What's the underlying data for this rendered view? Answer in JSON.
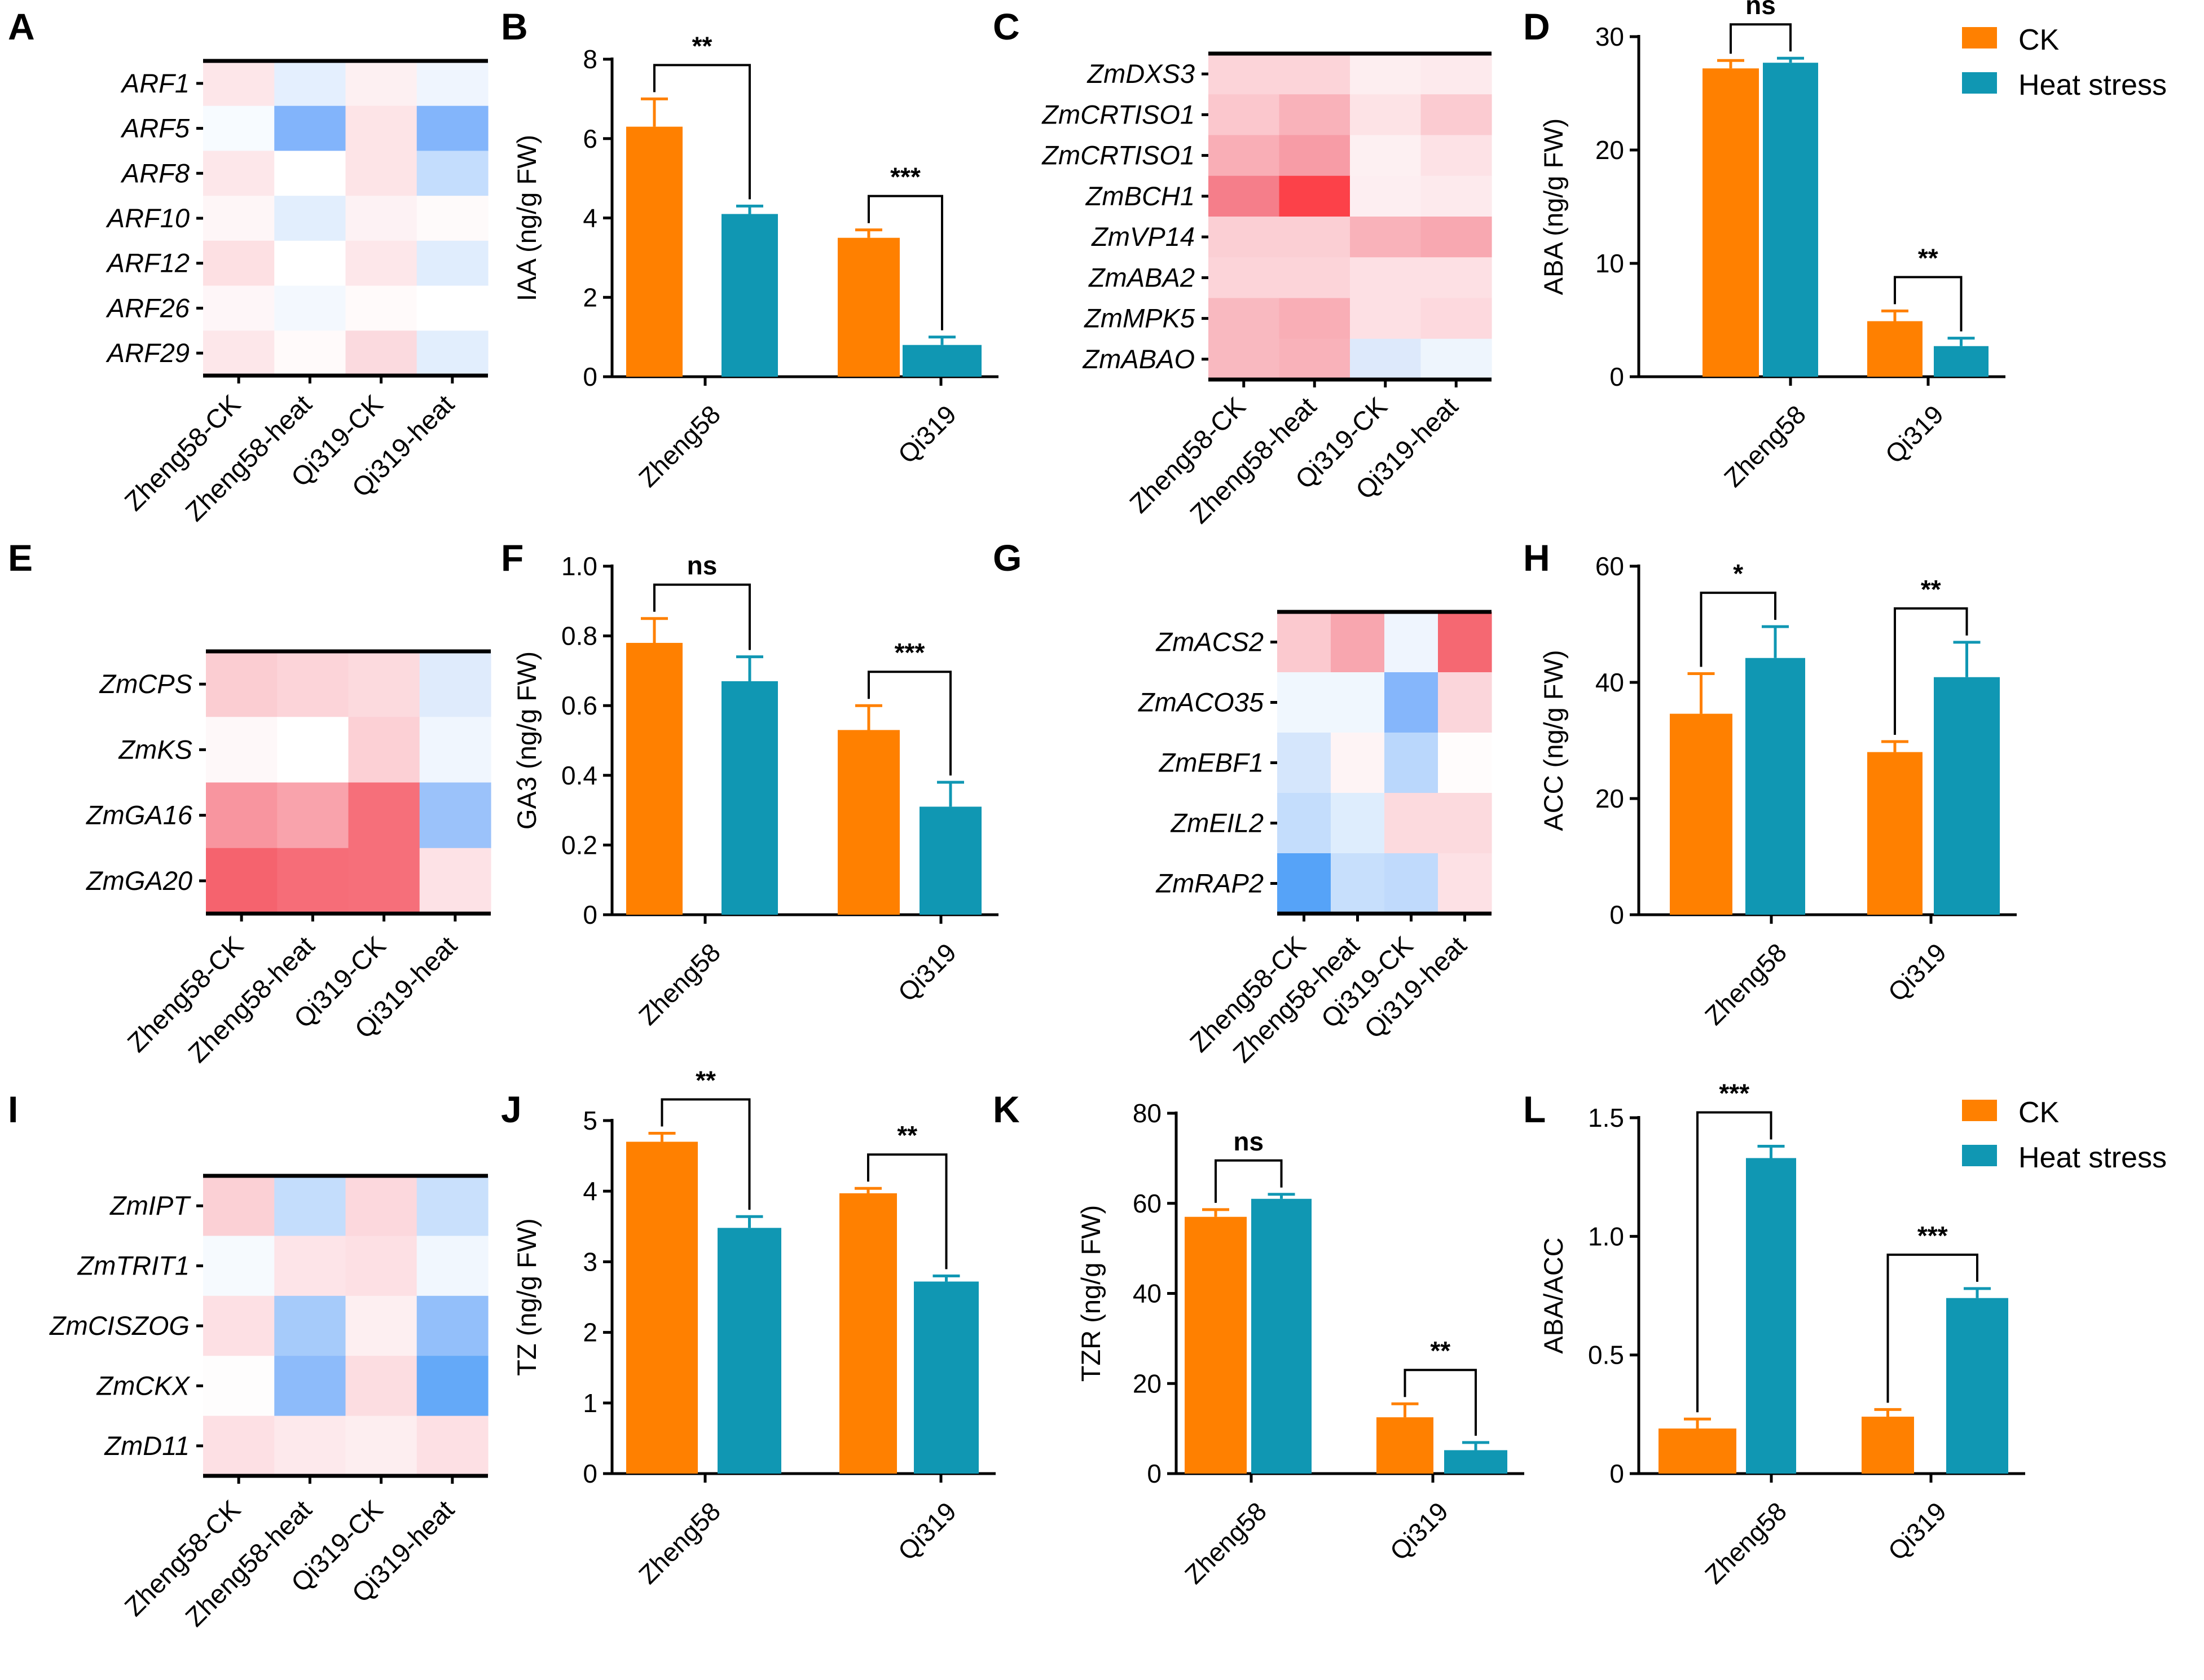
{
  "colors": {
    "ck": "#FF8000",
    "heat": "#1097B3"
  },
  "legend": {
    "ck_label": "CK",
    "heat_label": "Heat stress"
  },
  "chart_data": [
    {
      "panel": "A",
      "type": "heatmap",
      "rows": [
        "ARF1",
        "ARF5",
        "ARF8",
        "ARF10",
        "ARF12",
        "ARF26",
        "ARF29"
      ],
      "columns": [
        "Zheng58-CK",
        "Zheng58-heat",
        "Qi319-CK",
        "Qi319-heat"
      ],
      "colors": [
        [
          "#fde6e9",
          "#e4effe",
          "#fdf0f2",
          "#eff5fe"
        ],
        [
          "#f7fbff",
          "#82b4fb",
          "#fde4e7",
          "#83b5fb"
        ],
        [
          "#fde7ea",
          "#ffffff",
          "#fde4e7",
          "#c4ddfd"
        ],
        [
          "#fef6f7",
          "#e2eefd",
          "#fdf2f4",
          "#fefafa"
        ],
        [
          "#fde0e3",
          "#ffffff",
          "#fde7ea",
          "#e0edfd"
        ],
        [
          "#fef6f8",
          "#f3f8fe",
          "#fffafa",
          "#ffffff"
        ],
        [
          "#fde7ea",
          "#fffafa",
          "#fbdadf",
          "#e2eefd"
        ]
      ]
    },
    {
      "panel": "B",
      "type": "bar",
      "categories": [
        "Zheng58",
        "Qi319"
      ],
      "series": [
        {
          "name": "CK",
          "values": [
            6.3,
            3.5
          ],
          "errors": [
            0.7,
            0.2
          ]
        },
        {
          "name": "Heat stress",
          "values": [
            4.1,
            0.8
          ],
          "errors": [
            0.2,
            0.2
          ]
        }
      ],
      "ylabel": "IAA (ng/g FW)",
      "ylim": [
        0,
        8
      ],
      "yticks": [
        "0",
        "2",
        "4",
        "6",
        "8"
      ],
      "significance": [
        "**",
        "***"
      ]
    },
    {
      "panel": "C",
      "type": "heatmap",
      "rows": [
        "ZmDXS3",
        "ZmCRTISO1",
        "ZmCRTISO1",
        "ZmBCH1",
        "ZmVP14",
        "ZmABA2",
        "ZmMPK5",
        "ZmABAO"
      ],
      "columns": [
        "Zheng58-CK",
        "Zheng58-heat",
        "Qi319-CK",
        "Qi319-heat"
      ],
      "colors": [
        [
          "#fcd4d9",
          "#fcd4d9",
          "#fdeef0",
          "#fdeaed"
        ],
        [
          "#fbc7cd",
          "#f9b2ba",
          "#fde3e6",
          "#fbcbd1"
        ],
        [
          "#f9aeb6",
          "#f79ca6",
          "#fdf0f2",
          "#fde2e6"
        ],
        [
          "#f57e8a",
          "#fc4149",
          "#fdeef1",
          "#fdeaed"
        ],
        [
          "#fbcfd4",
          "#fbcfd4",
          "#f9b2ba",
          "#f8a8b1"
        ],
        [
          "#fcd4d9",
          "#fcd4d9",
          "#fde0e4",
          "#fde0e4"
        ],
        [
          "#f9b9c0",
          "#f9aeb6",
          "#fde0e4",
          "#fdd9de"
        ],
        [
          "#f9b9c0",
          "#f9b2ba",
          "#dde9fb",
          "#eef5fd"
        ]
      ]
    },
    {
      "panel": "D",
      "type": "bar",
      "categories": [
        "Zheng58",
        "Qi319"
      ],
      "series": [
        {
          "name": "CK",
          "values": [
            27.2,
            4.9
          ],
          "errors": [
            0.7,
            0.9
          ]
        },
        {
          "name": "Heat stress",
          "values": [
            27.7,
            2.7
          ],
          "errors": [
            0.4,
            0.7
          ]
        }
      ],
      "ylabel": "ABA (ng/g FW)",
      "ylim": [
        0,
        30
      ],
      "yticks": [
        "0",
        "10",
        "20",
        "30"
      ],
      "significance": [
        "ns",
        "**"
      ]
    },
    {
      "panel": "E",
      "type": "heatmap",
      "rows": [
        "ZmCPS",
        "ZmKS",
        "ZmGA16",
        "ZmGA20"
      ],
      "columns": [
        "Zheng58-CK",
        "Zheng58-heat",
        "Qi319-CK",
        "Qi319-heat"
      ],
      "colors": [
        [
          "#fbcdd2",
          "#fcd4d9",
          "#fcdade",
          "#dfebfc"
        ],
        [
          "#fef8f9",
          "#ffffff",
          "#fcd0d5",
          "#f0f6fe"
        ],
        [
          "#f8959f",
          "#f9a3ac",
          "#f66f7a",
          "#9bc2fa"
        ],
        [
          "#f5636e",
          "#f66d78",
          "#f66f7a",
          "#fde2e6"
        ]
      ]
    },
    {
      "panel": "F",
      "type": "bar",
      "categories": [
        "Zheng58",
        "Qi319"
      ],
      "series": [
        {
          "name": "CK",
          "values": [
            0.78,
            0.53
          ],
          "errors": [
            0.07,
            0.07
          ]
        },
        {
          "name": "Heat stress",
          "values": [
            0.67,
            0.31
          ],
          "errors": [
            0.07,
            0.07
          ]
        }
      ],
      "ylabel": "GA3 (ng/g FW)",
      "ylim": [
        0,
        1.0
      ],
      "yticks": [
        "0",
        "0.2",
        "0.4",
        "0.6",
        "0.8",
        "1.0"
      ],
      "significance": [
        "ns",
        "***"
      ]
    },
    {
      "panel": "G",
      "type": "heatmap",
      "rows": [
        "ZmACS2",
        "ZmACO35",
        "ZmEBF1",
        "ZmEIL2",
        "ZmRAP2"
      ],
      "columns": [
        "Zheng58-CK",
        "Zheng58-heat",
        "Qi319-CK",
        "Qi319-heat"
      ],
      "colors": [
        [
          "#fbc9cf",
          "#f8a6af",
          "#eff5fe",
          "#f56872"
        ],
        [
          "#f0f7fe",
          "#f0f7fe",
          "#85b6fb",
          "#fbd6db"
        ],
        [
          "#d5e6fc",
          "#fef4f5",
          "#bad7fc",
          "#fffcfc"
        ],
        [
          "#c4ddfc",
          "#deedfd",
          "#fcdade",
          "#fcdade"
        ],
        [
          "#56a3f8",
          "#c7dffc",
          "#c0dafc",
          "#fde1e5"
        ]
      ]
    },
    {
      "panel": "H",
      "type": "bar",
      "categories": [
        "Zheng58",
        "Qi319"
      ],
      "series": [
        {
          "name": "CK",
          "values": [
            34.6,
            28.0
          ],
          "errors": [
            6.9,
            1.8
          ]
        },
        {
          "name": "Heat stress",
          "values": [
            44.2,
            40.9
          ],
          "errors": [
            5.4,
            6.0
          ]
        }
      ],
      "ylabel": "ACC (ng/g FW)",
      "ylim": [
        0,
        60
      ],
      "yticks": [
        "0",
        "20",
        "40",
        "60"
      ],
      "significance": [
        "*",
        "**"
      ]
    },
    {
      "panel": "I",
      "type": "heatmap",
      "rows": [
        "ZmIPT",
        "ZmTRIT1",
        "ZmCISZOG",
        "ZmCKX",
        "ZmD11"
      ],
      "columns": [
        "Zheng58-CK",
        "Zheng58-heat",
        "Qi319-CK",
        "Qi319-heat"
      ],
      "colors": [
        [
          "#fbd0d5",
          "#c4ddfc",
          "#fcd8dd",
          "#c9e0fc"
        ],
        [
          "#f6fafe",
          "#fde4e8",
          "#fde0e4",
          "#f1f7fe"
        ],
        [
          "#fde0e4",
          "#a6cbfa",
          "#fdeff1",
          "#93bffa"
        ],
        [
          "#fefdfd",
          "#8dbbfa",
          "#fcdde1",
          "#64a9f8"
        ],
        [
          "#fde0e4",
          "#fde9ec",
          "#fdeef0",
          "#fde0e4"
        ]
      ]
    },
    {
      "panel": "J",
      "type": "bar",
      "categories": [
        "Zheng58",
        "Qi319"
      ],
      "series": [
        {
          "name": "CK",
          "values": [
            4.7,
            3.97
          ],
          "errors": [
            0.12,
            0.07
          ]
        },
        {
          "name": "Heat stress",
          "values": [
            3.48,
            2.72
          ],
          "errors": [
            0.16,
            0.08
          ]
        }
      ],
      "ylabel": "TZ (ng/g FW)",
      "ylim": [
        0,
        5
      ],
      "yticks": [
        "0",
        "1",
        "2",
        "3",
        "4",
        "5"
      ],
      "significance": [
        "**",
        "**"
      ]
    },
    {
      "panel": "K",
      "type": "bar",
      "categories": [
        "Zheng58",
        "Qi319"
      ],
      "series": [
        {
          "name": "CK",
          "values": [
            57.0,
            12.5
          ],
          "errors": [
            1.6,
            3.0
          ]
        },
        {
          "name": "Heat stress",
          "values": [
            61.0,
            5.2
          ],
          "errors": [
            1.0,
            1.7
          ]
        }
      ],
      "ylabel": "TZR (ng/g FW)",
      "ylim": [
        0,
        80
      ],
      "yticks": [
        "0",
        "20",
        "40",
        "60",
        "80"
      ],
      "significance": [
        "ns",
        "**"
      ]
    },
    {
      "panel": "L",
      "type": "bar",
      "categories": [
        "Zheng58",
        "Qi319"
      ],
      "series": [
        {
          "name": "CK",
          "values": [
            0.19,
            0.24
          ],
          "errors": [
            0.04,
            0.03
          ]
        },
        {
          "name": "Heat stress",
          "values": [
            1.33,
            0.74
          ],
          "errors": [
            0.05,
            0.04
          ]
        }
      ],
      "ylabel": "ABA/ACC",
      "ylim": [
        0,
        1.5
      ],
      "yticks": [
        "0",
        "0.5",
        "1.0",
        "1.5"
      ],
      "significance": [
        "***",
        "***"
      ]
    }
  ]
}
